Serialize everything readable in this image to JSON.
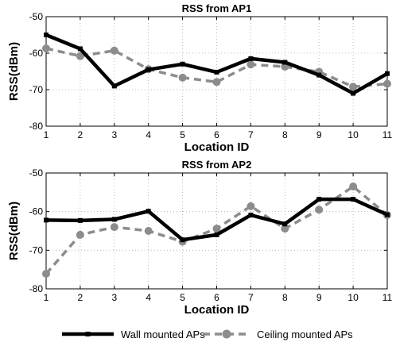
{
  "chart_data": [
    {
      "type": "line",
      "title": "RSS from AP1",
      "xlabel": "Location ID",
      "ylabel": "RSS(dBm)",
      "x": [
        1,
        2,
        3,
        4,
        5,
        6,
        7,
        8,
        9,
        10,
        11
      ],
      "xlim": [
        1,
        11
      ],
      "ylim": [
        -80,
        -50
      ],
      "yticks": [
        -80,
        -70,
        -60,
        -50
      ],
      "grid": true,
      "series": [
        {
          "name": "Wall mounted APs",
          "values": [
            -55,
            -58.8,
            -69,
            -64.5,
            -63,
            -65.2,
            -61.5,
            -62.5,
            -66,
            -71,
            -65.6
          ]
        },
        {
          "name": "Ceiling mounted APs",
          "values": [
            -58.7,
            -60.8,
            -59.3,
            -64.4,
            -66.7,
            -67.9,
            -63.1,
            -63.7,
            -65.1,
            -69.2,
            -68.4
          ]
        }
      ]
    },
    {
      "type": "line",
      "title": "RSS from AP2",
      "xlabel": "Location ID",
      "ylabel": "RSS(dBm)",
      "x": [
        1,
        2,
        3,
        4,
        5,
        6,
        7,
        8,
        9,
        10,
        11
      ],
      "xlim": [
        1,
        11
      ],
      "ylim": [
        -80,
        -50
      ],
      "yticks": [
        -80,
        -70,
        -60,
        -50
      ],
      "grid": true,
      "series": [
        {
          "name": "Wall mounted APs",
          "values": [
            -62.2,
            -62.3,
            -62,
            -59.9,
            -67.3,
            -66,
            -60.9,
            -63.2,
            -56.8,
            -56.8,
            -60.8
          ]
        },
        {
          "name": "Ceiling mounted APs",
          "values": [
            -76.1,
            -66,
            -64,
            -65,
            -67.8,
            -64.4,
            -58.6,
            -64.4,
            -59.5,
            -53.5,
            -60.9
          ]
        }
      ]
    }
  ],
  "legend": {
    "placement": "bottom",
    "items": [
      {
        "label": "Wall mounted APs",
        "style": "solid-square"
      },
      {
        "label": "Ceiling mounted APs",
        "style": "dashed-circle"
      }
    ]
  },
  "colors": {
    "wall": "#000000",
    "ceiling": "#8c8c8c",
    "grid": "#aaaaaa"
  }
}
